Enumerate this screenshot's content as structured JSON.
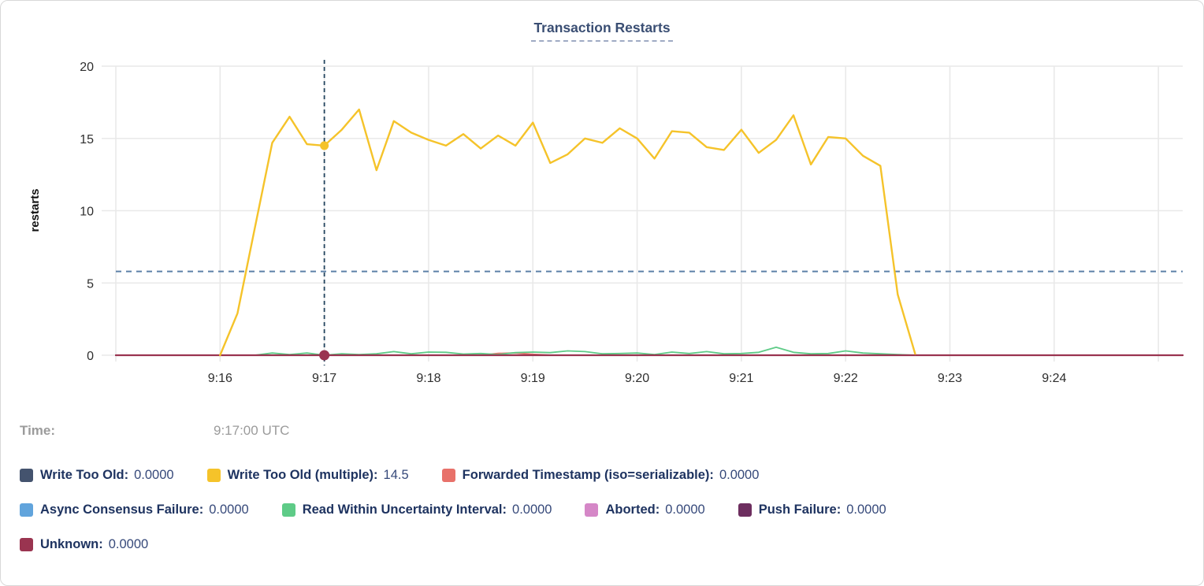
{
  "title": "Transaction Restarts",
  "time_row": {
    "label": "Time:",
    "value": "9:17:00 UTC"
  },
  "colors": {
    "write_too_old": "#44536e",
    "write_too_old_multiple": "#f5c32a",
    "forwarded_timestamp": "#e8716a",
    "async_consensus_failure": "#61a4dc",
    "read_within_uncertainty": "#5ecb87",
    "aborted": "#d587c7",
    "push_failure": "#6d2e5f",
    "unknown": "#9a3450",
    "crosshair": "#24455f",
    "avg_line": "#5c80a8",
    "gridline": "#e9e9e9",
    "tick_text": "#2e2e2e"
  },
  "legend_rows": [
    [
      {
        "label": "Write Too Old",
        "value": "0.0000",
        "color": "#44536e"
      },
      {
        "label": "Write Too Old (multiple)",
        "value": "14.5",
        "color": "#f5c32a"
      },
      {
        "label": "Forwarded Timestamp (iso=serializable)",
        "value": "0.0000",
        "color": "#e8716a"
      }
    ],
    [
      {
        "label": "Async Consensus Failure",
        "value": "0.0000",
        "color": "#61a4dc"
      },
      {
        "label": "Read Within Uncertainty Interval",
        "value": "0.0000",
        "color": "#5ecb87"
      },
      {
        "label": "Aborted",
        "value": "0.0000",
        "color": "#d587c7"
      },
      {
        "label": "Push Failure",
        "value": "0.0000",
        "color": "#6d2e5f"
      }
    ],
    [
      {
        "label": "Unknown",
        "value": "0.0000",
        "color": "#9a3450"
      }
    ]
  ],
  "chart_data": {
    "type": "line",
    "title": "Transaction Restarts",
    "xlabel": "",
    "ylabel": "restarts",
    "x_axis": {
      "unit": "time (UTC)",
      "range_seconds_from_9_15": [
        0,
        614
      ],
      "gridline_seconds": [
        0,
        60,
        120,
        180,
        240,
        300,
        360,
        420,
        480,
        540,
        600
      ],
      "tick_seconds": [
        60,
        120,
        180,
        240,
        300,
        360,
        420,
        480,
        540
      ],
      "tick_labels": [
        "9:16",
        "9:17",
        "9:18",
        "9:19",
        "9:20",
        "9:21",
        "9:22",
        "9:23",
        "9:24"
      ]
    },
    "y_axis": {
      "ticks": [
        0,
        5,
        10,
        15,
        20
      ],
      "range": [
        0,
        20
      ]
    },
    "avg_line_value": 5.8,
    "hover": {
      "time_seconds": 120,
      "time_label": "9:17:00 UTC",
      "highlight": [
        {
          "series": "Write Too Old (multiple)",
          "value": 14.5,
          "dot_radius": 5.5
        },
        {
          "series": "Unknown",
          "value": 0,
          "dot_radius": 6.5
        }
      ]
    },
    "series": [
      {
        "name": "Write Too Old",
        "color": "#44536e",
        "width": 2,
        "points": [
          [
            0,
            0
          ],
          [
            614,
            0
          ]
        ]
      },
      {
        "name": "Async Consensus Failure",
        "color": "#61a4dc",
        "width": 2,
        "points": [
          [
            0,
            0
          ],
          [
            614,
            0
          ]
        ]
      },
      {
        "name": "Aborted",
        "color": "#d587c7",
        "width": 2,
        "points": [
          [
            0,
            0
          ],
          [
            614,
            0
          ]
        ]
      },
      {
        "name": "Push Failure",
        "color": "#6d2e5f",
        "width": 2,
        "points": [
          [
            0,
            0
          ],
          [
            614,
            0
          ]
        ]
      },
      {
        "name": "Forwarded Timestamp (iso=serializable)",
        "color": "#e8716a",
        "width": 2,
        "points": [
          [
            0,
            0
          ],
          [
            210,
            0
          ],
          [
            220,
            0.12
          ],
          [
            230,
            0.16
          ],
          [
            240,
            0.06
          ],
          [
            250,
            0
          ],
          [
            614,
            0
          ]
        ]
      },
      {
        "name": "Read Within Uncertainty Interval",
        "color": "#5ecb87",
        "width": 1.8,
        "points": [
          [
            80,
            0
          ],
          [
            90,
            0.15
          ],
          [
            100,
            0.05
          ],
          [
            110,
            0.15
          ],
          [
            120,
            0
          ],
          [
            130,
            0.1
          ],
          [
            140,
            0.05
          ],
          [
            150,
            0.1
          ],
          [
            160,
            0.25
          ],
          [
            170,
            0.1
          ],
          [
            180,
            0.22
          ],
          [
            190,
            0.2
          ],
          [
            200,
            0.08
          ],
          [
            210,
            0.12
          ],
          [
            220,
            0.05
          ],
          [
            230,
            0.18
          ],
          [
            240,
            0.22
          ],
          [
            250,
            0.18
          ],
          [
            260,
            0.3
          ],
          [
            270,
            0.25
          ],
          [
            280,
            0.1
          ],
          [
            290,
            0.12
          ],
          [
            300,
            0.15
          ],
          [
            310,
            0.05
          ],
          [
            320,
            0.22
          ],
          [
            330,
            0.12
          ],
          [
            340,
            0.25
          ],
          [
            350,
            0.1
          ],
          [
            360,
            0.12
          ],
          [
            370,
            0.2
          ],
          [
            380,
            0.55
          ],
          [
            390,
            0.2
          ],
          [
            400,
            0.1
          ],
          [
            410,
            0.12
          ],
          [
            420,
            0.3
          ],
          [
            430,
            0.15
          ],
          [
            440,
            0.1
          ],
          [
            450,
            0.05
          ],
          [
            460,
            0
          ]
        ]
      },
      {
        "name": "Unknown",
        "color": "#9a3450",
        "width": 2.2,
        "points": [
          [
            0,
            0
          ],
          [
            614,
            0
          ]
        ]
      },
      {
        "name": "Write Too Old (multiple)",
        "color": "#f5c32a",
        "width": 2.4,
        "points": [
          [
            60,
            0
          ],
          [
            70,
            2.9
          ],
          [
            80,
            8.8
          ],
          [
            90,
            14.7
          ],
          [
            100,
            16.5
          ],
          [
            110,
            14.6
          ],
          [
            120,
            14.5
          ],
          [
            130,
            15.6
          ],
          [
            140,
            17
          ],
          [
            150,
            12.8
          ],
          [
            160,
            16.2
          ],
          [
            170,
            15.4
          ],
          [
            180,
            14.9
          ],
          [
            190,
            14.5
          ],
          [
            200,
            15.3
          ],
          [
            210,
            14.3
          ],
          [
            220,
            15.2
          ],
          [
            230,
            14.5
          ],
          [
            240,
            16.1
          ],
          [
            250,
            13.3
          ],
          [
            260,
            13.9
          ],
          [
            270,
            15
          ],
          [
            280,
            14.7
          ],
          [
            290,
            15.7
          ],
          [
            300,
            15
          ],
          [
            310,
            13.6
          ],
          [
            320,
            15.5
          ],
          [
            330,
            15.4
          ],
          [
            340,
            14.4
          ],
          [
            350,
            14.2
          ],
          [
            360,
            15.6
          ],
          [
            370,
            14
          ],
          [
            380,
            14.9
          ],
          [
            390,
            16.6
          ],
          [
            400,
            13.2
          ],
          [
            410,
            15.1
          ],
          [
            420,
            15
          ],
          [
            430,
            13.8
          ],
          [
            440,
            13.1
          ],
          [
            450,
            4.2
          ],
          [
            460,
            0.1
          ]
        ]
      }
    ]
  }
}
